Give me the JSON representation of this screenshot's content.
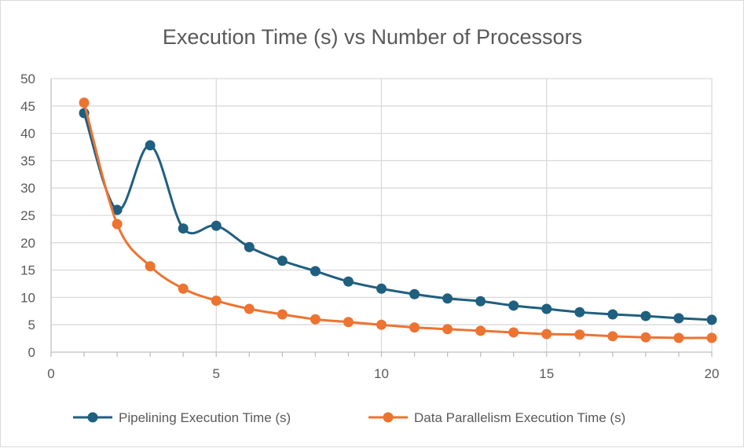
{
  "chart_data": {
    "type": "line",
    "title": "Execution Time (s) vs Number of Processors",
    "xlabel": "",
    "ylabel": "",
    "xlim": [
      0,
      20
    ],
    "ylim": [
      0,
      50
    ],
    "xticks": [
      0,
      5,
      10,
      15,
      20
    ],
    "yticks": [
      0,
      5,
      10,
      15,
      20,
      25,
      30,
      35,
      40,
      45,
      50
    ],
    "grid": true,
    "smooth": true,
    "legend_position": "bottom",
    "x": [
      1,
      2,
      3,
      4,
      5,
      6,
      7,
      8,
      9,
      10,
      11,
      12,
      13,
      14,
      15,
      16,
      17,
      18,
      19,
      20
    ],
    "series": [
      {
        "name": "Pipelining Execution Time (s)",
        "color": "#1f5f7f",
        "values": [
          43.7,
          26.0,
          37.8,
          22.6,
          23.1,
          19.2,
          16.7,
          14.8,
          12.9,
          11.6,
          10.6,
          9.8,
          9.3,
          8.5,
          7.9,
          7.3,
          6.9,
          6.6,
          6.2,
          5.9
        ]
      },
      {
        "name": "Data Parallelism Execution Time (s)",
        "color": "#ed7331",
        "values": [
          45.6,
          23.4,
          15.7,
          11.6,
          9.4,
          7.9,
          6.9,
          6.0,
          5.5,
          5.0,
          4.5,
          4.2,
          3.9,
          3.6,
          3.3,
          3.2,
          2.9,
          2.7,
          2.6,
          2.6
        ]
      }
    ]
  }
}
